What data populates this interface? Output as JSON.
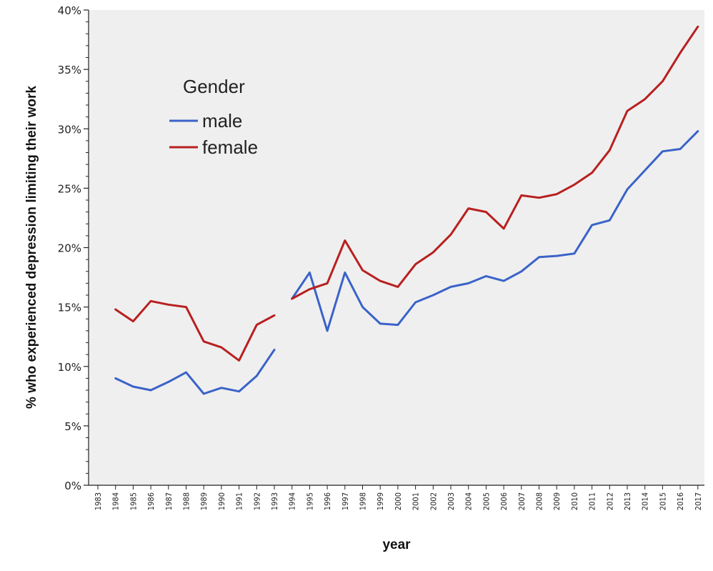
{
  "chart_data": {
    "type": "line",
    "xlabel": "year",
    "ylabel": "% who experienced depression limiting their work",
    "ylim": [
      0,
      40
    ],
    "yticks": [
      "0%",
      "5%",
      "10%",
      "15%",
      "20%",
      "25%",
      "30%",
      "35%",
      "40%"
    ],
    "x": [
      "1983",
      "1984",
      "1985",
      "1986",
      "1987",
      "1988",
      "1989",
      "1990",
      "1991",
      "1992",
      "1993",
      "1994",
      "1995",
      "1996",
      "1997",
      "1998",
      "1999",
      "2000",
      "2001",
      "2002",
      "2003",
      "2004",
      "2005",
      "2006",
      "2007",
      "2008",
      "2009",
      "2010",
      "2011",
      "2012",
      "2013",
      "2014",
      "2015",
      "2016",
      "2017"
    ],
    "legend": {
      "title": "Gender",
      "position": "top-left"
    },
    "grid": false,
    "series": [
      {
        "name": "male",
        "color": "#3a63c9",
        "values": [
          null,
          9.0,
          8.3,
          8.0,
          8.7,
          9.5,
          7.7,
          8.2,
          7.9,
          9.2,
          11.4,
          15.7,
          17.9,
          13.0,
          17.9,
          15.0,
          13.6,
          13.5,
          15.4,
          16.0,
          16.7,
          17.0,
          17.6,
          17.2,
          18.0,
          19.2,
          19.3,
          19.5,
          21.9,
          22.3,
          24.9,
          26.5,
          28.1,
          28.3,
          29.8
        ]
      },
      {
        "name": "female",
        "color": "#b8201f",
        "values": [
          null,
          14.8,
          13.8,
          15.5,
          15.2,
          15.0,
          12.1,
          11.6,
          10.5,
          13.5,
          14.3,
          15.7,
          16.5,
          17.0,
          20.6,
          18.1,
          17.2,
          16.7,
          18.6,
          19.6,
          21.1,
          23.3,
          23.0,
          21.6,
          24.4,
          24.2,
          24.5,
          25.3,
          26.3,
          28.2,
          31.5,
          32.5,
          34.0,
          36.4,
          38.6
        ]
      }
    ],
    "gap_after": "1993"
  }
}
